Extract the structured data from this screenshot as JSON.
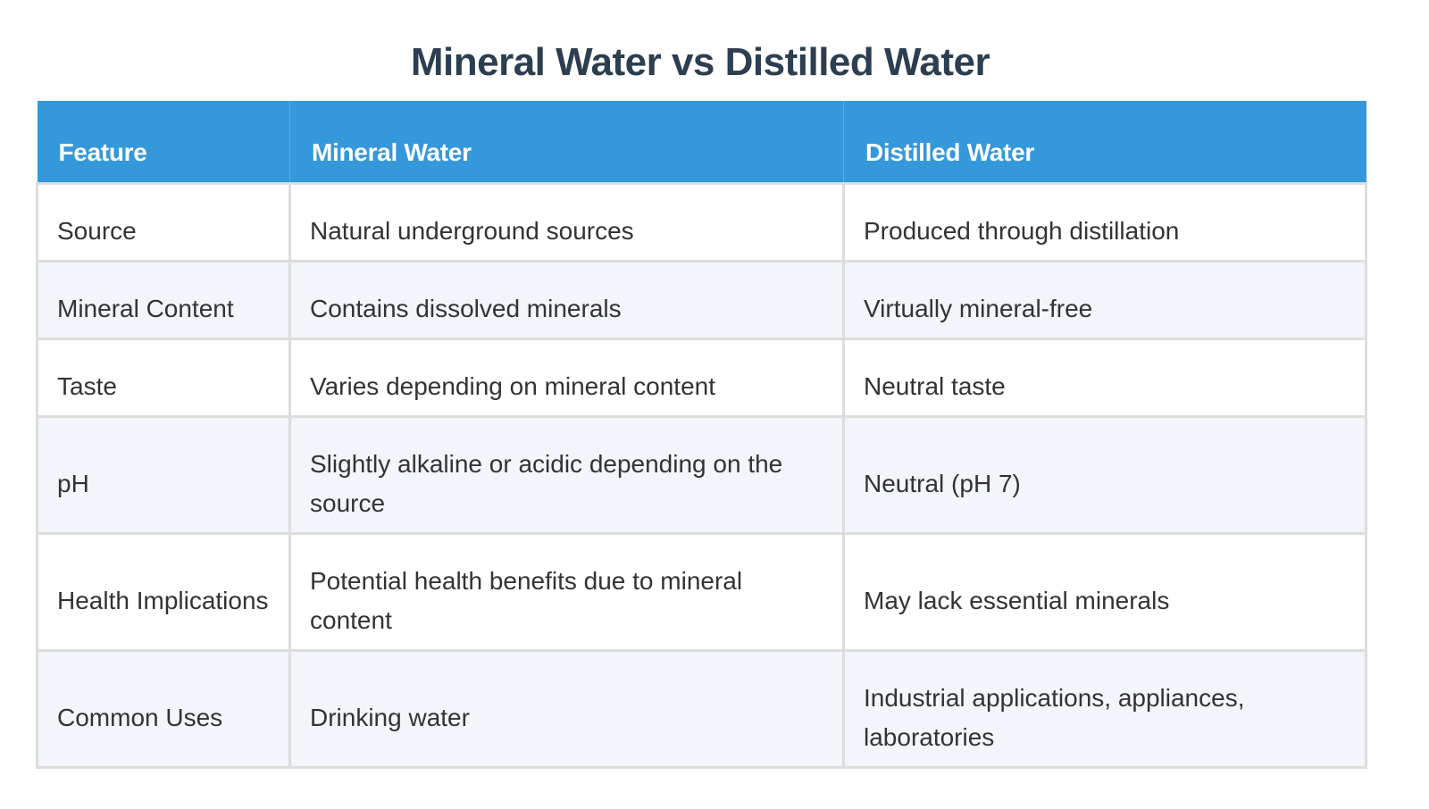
{
  "title": "Mineral Water vs Distilled Water",
  "colors": {
    "title": "#2c3e50",
    "header_bg": "#3498db",
    "header_text": "#ffffff",
    "row_alt_bg": "#f2f5f9",
    "border": "#dddddd",
    "body_text": "#333333"
  },
  "table": {
    "headers": [
      "Feature",
      "Mineral Water",
      "Distilled Water"
    ],
    "rows": [
      {
        "feature": "Source",
        "mineral": "Natural underground sources",
        "distilled": "Produced through distillation"
      },
      {
        "feature": "Mineral Content",
        "mineral": "Contains dissolved minerals",
        "distilled": "Virtually mineral-free"
      },
      {
        "feature": "Taste",
        "mineral": "Varies depending on mineral content",
        "distilled": "Neutral taste"
      },
      {
        "feature": "pH",
        "mineral": "Slightly alkaline or acidic depending on the source",
        "distilled": "Neutral (pH 7)"
      },
      {
        "feature": "Health Implications",
        "mineral": "Potential health benefits due to mineral content",
        "distilled": "May lack essential minerals"
      },
      {
        "feature": "Common Uses",
        "mineral": "Drinking water",
        "distilled": "Industrial applications, appliances, laboratories"
      }
    ]
  }
}
